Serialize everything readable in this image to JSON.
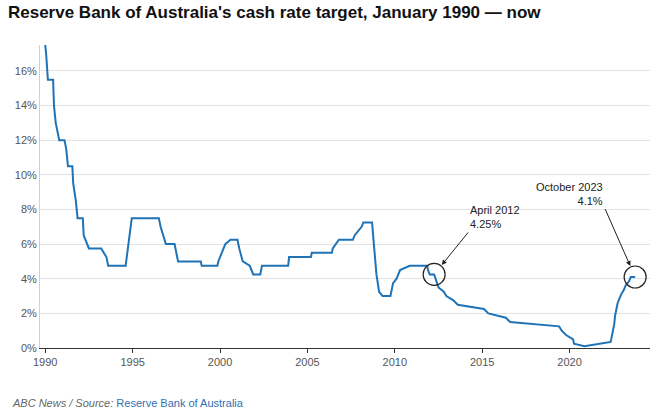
{
  "chart_data": {
    "type": "line",
    "title": "Reserve Bank of Australia's cash rate target, January 1990 — now",
    "source_prefix": "ABC News / Source:",
    "source_name": "Reserve Bank of Australia",
    "color": "#1f73b7",
    "grid": true,
    "x": [
      1990.0,
      1990.05,
      1990.15,
      1990.45,
      1990.5,
      1990.6,
      1990.8,
      1991.1,
      1991.2,
      1991.3,
      1991.55,
      1991.6,
      1991.75,
      1991.85,
      1992.15,
      1992.2,
      1992.5,
      1993.2,
      1993.5,
      1993.6,
      1994.6,
      1994.7,
      1994.85,
      1994.95,
      1996.5,
      1996.6,
      1996.9,
      1997.4,
      1997.5,
      1997.6,
      1998.9,
      1998.95,
      1999.85,
      1999.9,
      2000.1,
      2000.3,
      2000.6,
      2001.0,
      2001.1,
      2001.3,
      2001.7,
      2001.9,
      2002.3,
      2002.4,
      2003.9,
      2003.95,
      2005.2,
      2005.25,
      2006.4,
      2006.45,
      2006.8,
      2007.6,
      2007.7,
      2008.1,
      2008.2,
      2008.7,
      2008.8,
      2008.85,
      2008.95,
      2009.1,
      2009.3,
      2009.75,
      2009.8,
      2009.9,
      2010.1,
      2010.3,
      2010.85,
      2011.85,
      2011.9,
      2012.0,
      2012.25,
      2012.4,
      2012.5,
      2012.8,
      2012.95,
      2013.35,
      2013.6,
      2015.1,
      2015.35,
      2016.35,
      2016.6,
      2019.4,
      2019.55,
      2019.8,
      2020.2,
      2020.25,
      2020.85,
      2022.35,
      2022.45,
      2022.55,
      2022.6,
      2022.7,
      2022.75,
      2022.85,
      2022.95,
      2023.1,
      2023.2,
      2023.4,
      2023.5,
      2023.75
    ],
    "values": [
      17.5,
      17.0,
      15.5,
      15.5,
      14.0,
      13.0,
      12.0,
      12.0,
      11.5,
      10.5,
      10.5,
      9.5,
      8.5,
      7.5,
      7.5,
      6.5,
      5.75,
      5.75,
      5.25,
      4.75,
      4.75,
      5.5,
      6.5,
      7.5,
      7.5,
      7.0,
      6.0,
      6.0,
      5.5,
      5.0,
      5.0,
      4.75,
      4.75,
      5.0,
      5.5,
      6.0,
      6.25,
      6.25,
      5.75,
      5.0,
      4.75,
      4.25,
      4.25,
      4.75,
      4.75,
      5.25,
      5.25,
      5.5,
      5.5,
      5.75,
      6.25,
      6.25,
      6.5,
      7.0,
      7.25,
      7.25,
      6.0,
      5.25,
      4.25,
      3.25,
      3.0,
      3.0,
      3.25,
      3.75,
      4.0,
      4.5,
      4.75,
      4.75,
      4.5,
      4.25,
      4.25,
      3.75,
      3.5,
      3.25,
      3.0,
      2.75,
      2.5,
      2.25,
      2.0,
      1.75,
      1.5,
      1.25,
      1.0,
      0.75,
      0.5,
      0.25,
      0.1,
      0.35,
      0.85,
      1.35,
      1.85,
      2.35,
      2.6,
      2.85,
      3.1,
      3.35,
      3.6,
      3.85,
      4.1,
      4.1
    ],
    "xlim": [
      1989.7,
      2024.6
    ],
    "xticks": [
      1990,
      1995,
      2000,
      2005,
      2010,
      2015,
      2020
    ],
    "ylim": [
      0,
      17.5
    ],
    "yticks": [
      {
        "value": 0,
        "label": "0%"
      },
      {
        "value": 2,
        "label": "2%"
      },
      {
        "value": 4,
        "label": "4%"
      },
      {
        "value": 6,
        "label": "6%"
      },
      {
        "value": 8,
        "label": "8%"
      },
      {
        "value": 10,
        "label": "10%"
      },
      {
        "value": 12,
        "label": "12%"
      },
      {
        "value": 14,
        "label": "14%"
      },
      {
        "value": 16,
        "label": "16%"
      }
    ],
    "annotations": [
      {
        "lines": [
          "April 2012",
          "4.25%"
        ],
        "x": 2012.25,
        "y": 4.25
      },
      {
        "lines": [
          "October 2023",
          "4.1%"
        ],
        "x": 2023.75,
        "y": 4.1
      }
    ]
  }
}
